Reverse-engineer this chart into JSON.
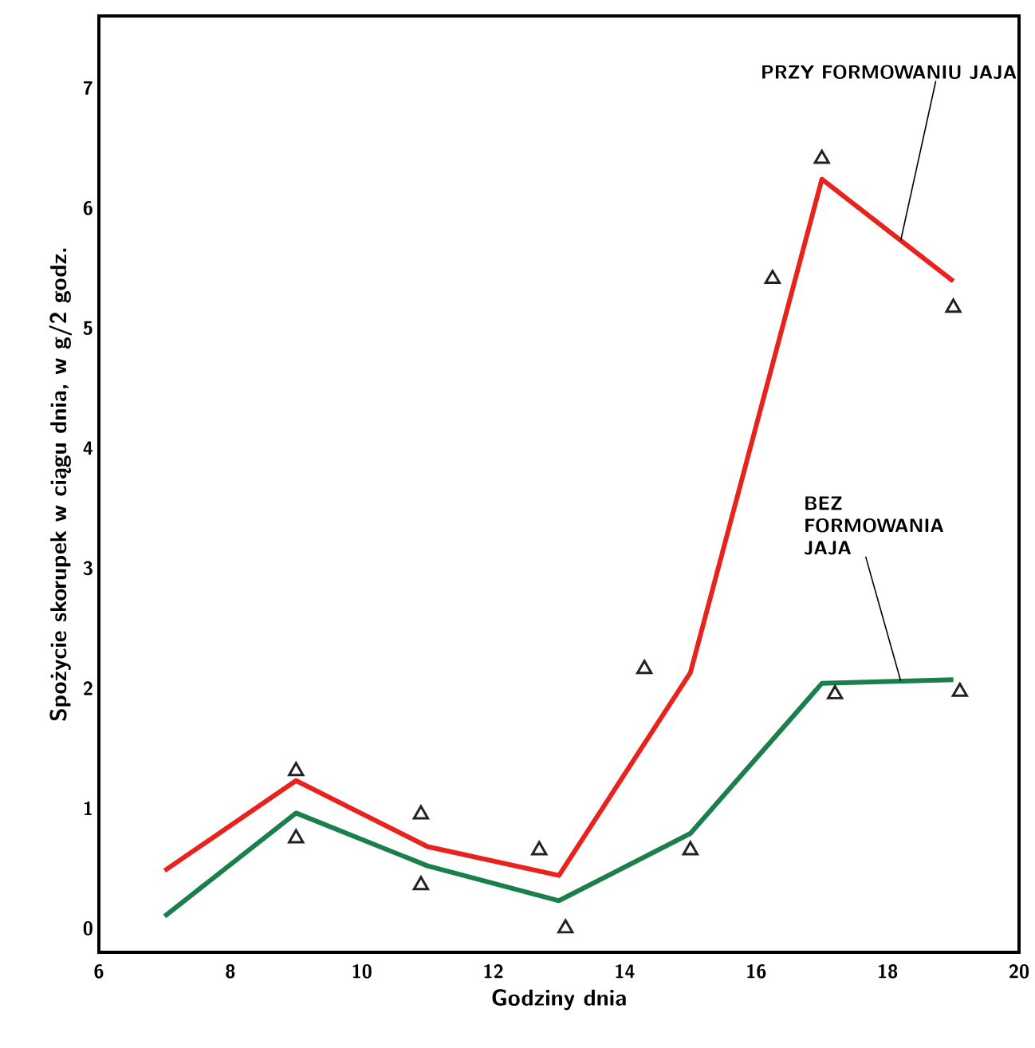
{
  "chart_data": {
    "type": "line",
    "xlabel": "Godziny dnia",
    "ylabel": "Spożycie skorupek w ciągu dnia, w g/2 godz.",
    "xlim": [
      6,
      20
    ],
    "ylim": [
      -0.2,
      7.6
    ],
    "xticks": [
      6,
      8,
      10,
      12,
      14,
      16,
      18,
      20
    ],
    "yticks": [
      0,
      1,
      2,
      3,
      4,
      5,
      6,
      7
    ],
    "grid": false,
    "series": [
      {
        "color": "#e8231e",
        "x": [
          7,
          9,
          11,
          13,
          15,
          17,
          19
        ],
        "values": [
          0.48,
          1.23,
          0.68,
          0.44,
          2.13,
          6.24,
          5.39
        ]
      },
      {
        "color": "#1a7f4a",
        "x": [
          7,
          9,
          11,
          13,
          15,
          17,
          19
        ],
        "values": [
          0.1,
          0.96,
          0.52,
          0.23,
          0.79,
          2.04,
          2.07
        ]
      },
      {
        "type": "scatter",
        "color": "#222222",
        "marker": "triangle",
        "x": [
          9,
          10.9,
          12.7,
          17.0,
          16.25,
          19,
          14.3
        ],
        "values": [
          1.31,
          0.95,
          0.65,
          6.41,
          5.41,
          5.17,
          2.16
        ]
      },
      {
        "type": "scatter",
        "color": "#222222",
        "marker": "triangle",
        "x": [
          9,
          10.9,
          13.1,
          15.0,
          17.2,
          19.1
        ],
        "values": [
          0.75,
          0.36,
          0.0,
          0.65,
          1.95,
          1.97
        ]
      }
    ],
    "annotations": [
      {
        "text": "PRZY FORMOWANIU JAJA",
        "x": 18.2,
        "y": 5.73
      },
      {
        "text": "BEZ FORMOWANIA JAJA",
        "x": 18.2,
        "y": 2.06
      }
    ]
  }
}
